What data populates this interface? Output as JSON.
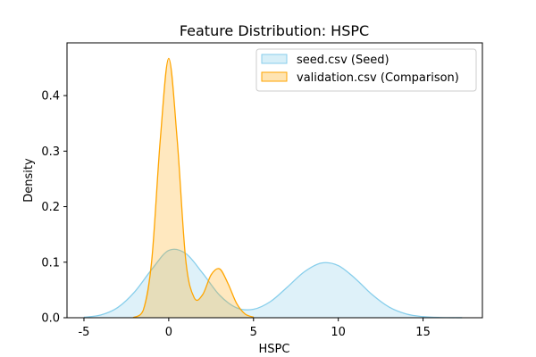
{
  "chart_data": {
    "type": "area",
    "title": "Feature Distribution: HSPC",
    "xlabel": "HSPC",
    "ylabel": "Density",
    "xlim": [
      -6,
      18.5
    ],
    "ylim": [
      0,
      0.495
    ],
    "xticks": [
      -5,
      0,
      5,
      10,
      15
    ],
    "yticks": [
      0.0,
      0.1,
      0.2,
      0.3,
      0.4
    ],
    "ytick_labels": [
      "0.0",
      "0.1",
      "0.2",
      "0.3",
      "0.4"
    ],
    "grid": false,
    "legend_position": "top-right",
    "series": [
      {
        "name": "seed.csv (Seed)",
        "color": "#87ceeb",
        "fill_opacity": 0.28,
        "x": [
          -5.0,
          -4.0,
          -3.0,
          -2.0,
          -1.0,
          0.0,
          1.0,
          2.0,
          3.0,
          4.0,
          5.0,
          6.0,
          7.0,
          8.0,
          9.0,
          10.0,
          11.0,
          12.0,
          13.0,
          14.0,
          15.0,
          16.0,
          17.3
        ],
        "values": [
          0.0009,
          0.005,
          0.0186,
          0.047,
          0.0871,
          0.1212,
          0.1157,
          0.0803,
          0.0406,
          0.0179,
          0.0152,
          0.0291,
          0.0553,
          0.0828,
          0.0985,
          0.0939,
          0.0706,
          0.0415,
          0.0191,
          0.0068,
          0.0019,
          0.0004,
          0.0001
        ]
      },
      {
        "name": "validation.csv (Comparison)",
        "color": "#ffa500",
        "fill_opacity": 0.25,
        "x": [
          -2.1,
          -1.5,
          -1.0,
          -0.5,
          0.0,
          0.5,
          1.0,
          1.5,
          2.0,
          2.5,
          3.0,
          3.5,
          4.0,
          4.5,
          5.0
        ],
        "values": [
          0.0001,
          0.0137,
          0.1041,
          0.3201,
          0.4671,
          0.3201,
          0.105,
          0.0362,
          0.0415,
          0.0773,
          0.088,
          0.0613,
          0.026,
          0.0068,
          0.0011
        ]
      }
    ]
  }
}
